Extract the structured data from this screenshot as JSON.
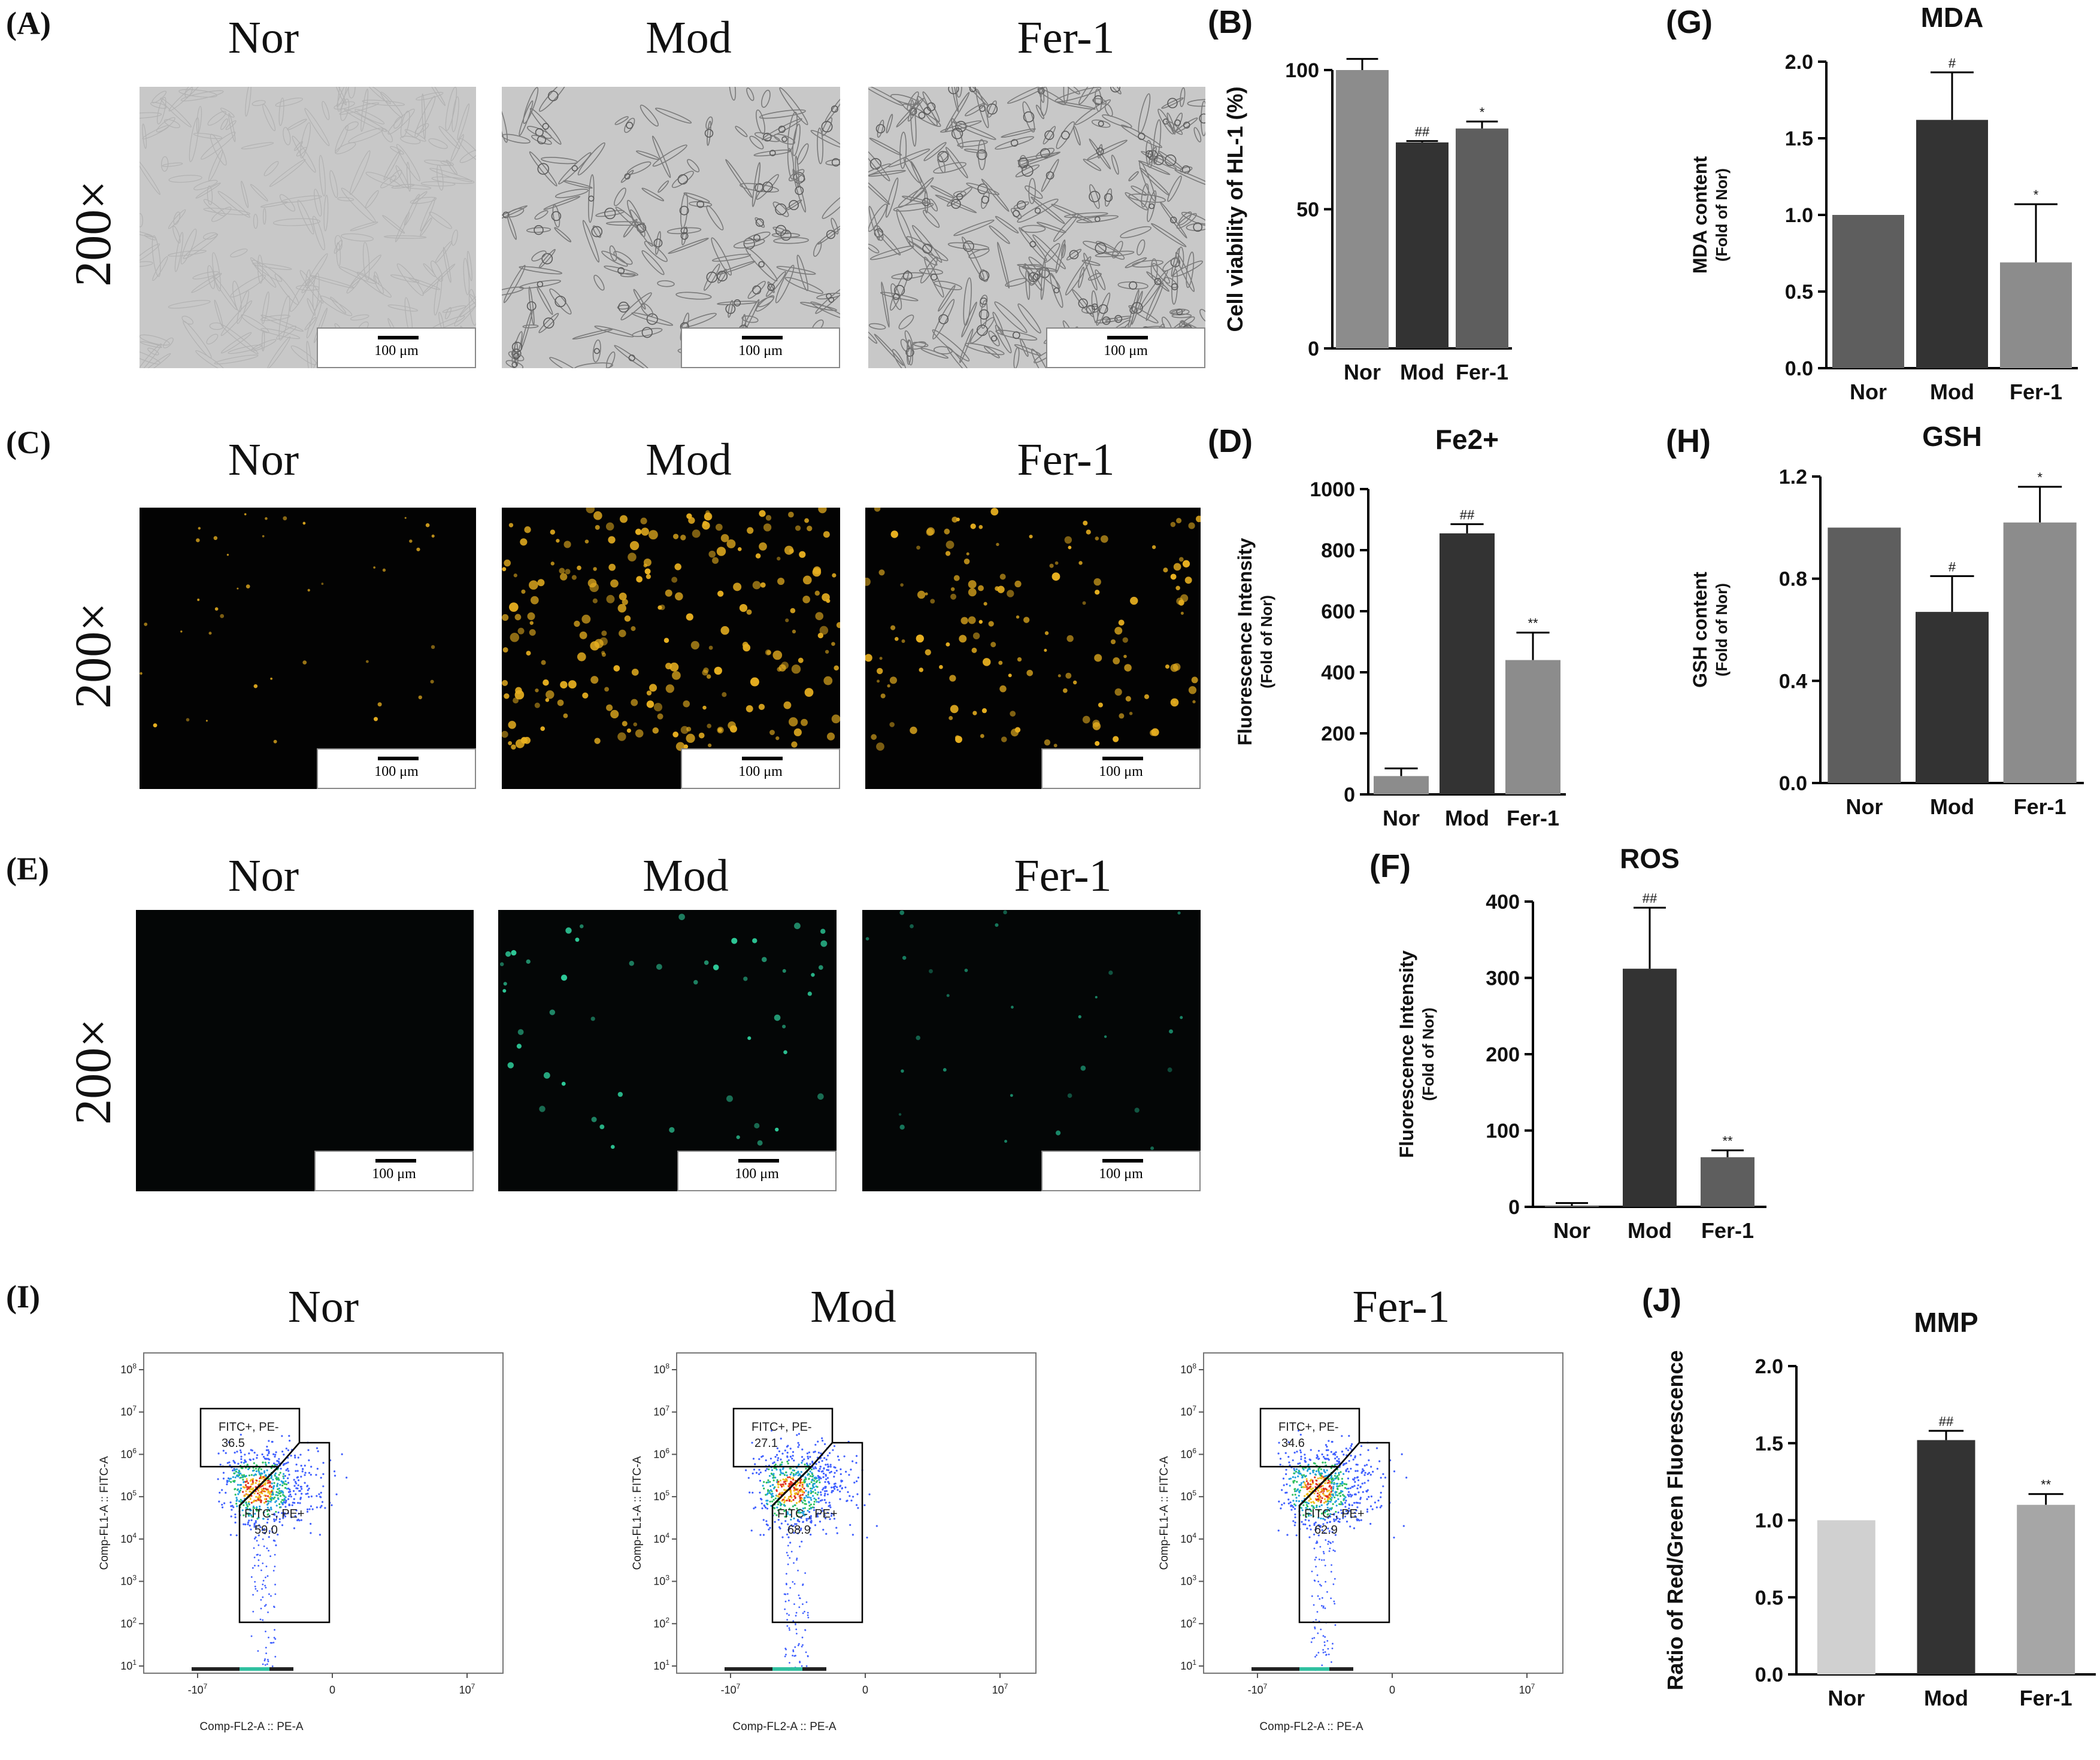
{
  "panels": {
    "A": {
      "label": "(A)",
      "groups": [
        "Nor",
        "Mod",
        "Fer-1"
      ],
      "magnification": "200×",
      "scale_text": "100 μm"
    },
    "C": {
      "label": "(C)",
      "groups": [
        "Nor",
        "Mod",
        "Fer-1"
      ],
      "magnification": "200×",
      "scale_text": "100 μm"
    },
    "E": {
      "label": "(E)",
      "groups": [
        "Nor",
        "Mod",
        "Fer-1"
      ],
      "magnification": "200×",
      "scale_text": "100 μm"
    },
    "I": {
      "label": "(I)",
      "groups": [
        "Nor",
        "Mod",
        "Fer-1"
      ],
      "xaxis_title": "Comp-FL2-A :: PE-A",
      "yaxis_title": "Comp-FL1-A :: FITC-A",
      "gate_upper": "FITC+, PE-",
      "gate_lower": "FITC-, PE+",
      "upper_values": [
        "36.5",
        "27.1",
        "34.6"
      ],
      "lower_values": [
        "59.0",
        "68.9",
        "62.9"
      ],
      "yticks": [
        "10^1",
        "10^2",
        "10^3",
        "10^4",
        "10^5",
        "10^6",
        "10^7",
        "10^8"
      ],
      "xticks": [
        "-10^7",
        "0",
        "10^7"
      ]
    }
  },
  "chart_data": [
    {
      "id": "B",
      "label": "(B)",
      "type": "bar",
      "title": "",
      "ylabel": "Cell viability of HL-1 (%)",
      "ylabel2": "",
      "categories": [
        "Nor",
        "Mod",
        "Fer-1"
      ],
      "values": [
        100,
        74,
        79
      ],
      "errors": [
        4,
        0.5,
        2.5
      ],
      "sig": [
        "",
        "##",
        "*"
      ],
      "ylim": [
        0,
        100
      ],
      "yticks": [
        0,
        50,
        100
      ],
      "yticklabels": [
        "0",
        "50",
        "100"
      ],
      "colors": [
        "#8c8c8c",
        "#333333",
        "#5e5e5e"
      ]
    },
    {
      "id": "G",
      "label": "(G)",
      "type": "bar",
      "title": "MDA",
      "ylabel": "MDA content",
      "ylabel2": "(Fold of Nor)",
      "categories": [
        "Nor",
        "Mod",
        "Fer-1"
      ],
      "values": [
        1.0,
        1.62,
        0.69
      ],
      "errors": [
        0,
        0.31,
        0.38
      ],
      "sig": [
        "",
        "#",
        "*"
      ],
      "ylim": [
        0,
        2.0
      ],
      "yticks": [
        0,
        0.5,
        1.0,
        1.5,
        2.0
      ],
      "yticklabels": [
        "0.0",
        "0.5",
        "1.0",
        "1.5",
        "2.0"
      ],
      "colors": [
        "#5e5e5e",
        "#333333",
        "#8c8c8c"
      ]
    },
    {
      "id": "D",
      "label": "(D)",
      "type": "bar",
      "title": "Fe2+",
      "ylabel": "Fluorescence Intensity",
      "ylabel2": "(Fold of Nor)",
      "categories": [
        "Nor",
        "Mod",
        "Fer-1"
      ],
      "values": [
        60,
        855,
        440
      ],
      "errors": [
        25,
        30,
        90
      ],
      "sig": [
        "",
        "##",
        "**"
      ],
      "ylim": [
        0,
        1000
      ],
      "yticks": [
        0,
        200,
        400,
        600,
        800,
        1000
      ],
      "yticklabels": [
        "0",
        "200",
        "400",
        "600",
        "800",
        "1000"
      ],
      "colors": [
        "#8c8c8c",
        "#333333",
        "#8c8c8c"
      ]
    },
    {
      "id": "H",
      "label": "(H)",
      "type": "bar",
      "title": "GSH",
      "ylabel": "GSH content",
      "ylabel2": "(Fold of Nor)",
      "categories": [
        "Nor",
        "Mod",
        "Fer-1"
      ],
      "values": [
        1.0,
        0.67,
        1.02
      ],
      "errors": [
        0,
        0.14,
        0.14
      ],
      "sig": [
        "",
        "#",
        "*"
      ],
      "ylim": [
        0,
        1.2
      ],
      "yticks": [
        0,
        0.4,
        0.8,
        1.2
      ],
      "yticklabels": [
        "0.0",
        "0.4",
        "0.8",
        "1.2"
      ],
      "colors": [
        "#5e5e5e",
        "#333333",
        "#8c8c8c"
      ]
    },
    {
      "id": "F",
      "label": "(F)",
      "type": "bar",
      "title": "ROS",
      "ylabel": "Fluorescence Intensity",
      "ylabel2": "(Fold of Nor)",
      "categories": [
        "Nor",
        "Mod",
        "Fer-1"
      ],
      "values": [
        1,
        312,
        65
      ],
      "errors": [
        4,
        80,
        9
      ],
      "sig": [
        "",
        "##",
        "**"
      ],
      "ylim": [
        0,
        400
      ],
      "yticks": [
        0,
        100,
        200,
        300,
        400
      ],
      "yticklabels": [
        "0",
        "100",
        "200",
        "300",
        "400"
      ],
      "colors": [
        "#8c8c8c",
        "#333333",
        "#5e5e5e"
      ]
    },
    {
      "id": "J",
      "label": "(J)",
      "type": "bar",
      "title": "MMP",
      "ylabel": "Ratio of Red/Green Fluorescence",
      "ylabel2": "",
      "categories": [
        "Nor",
        "Mod",
        "Fer-1"
      ],
      "values": [
        1.0,
        1.52,
        1.1
      ],
      "errors": [
        0,
        0.06,
        0.07
      ],
      "sig": [
        "",
        "##",
        "**"
      ],
      "ylim": [
        0,
        2.0
      ],
      "yticks": [
        0,
        0.5,
        1.0,
        1.5,
        2.0
      ],
      "yticklabels": [
        "0.0",
        "0.5",
        "1.0",
        "1.5",
        "2.0"
      ],
      "colors": [
        "#d0d0d0",
        "#333333",
        "#a6a6a6"
      ]
    }
  ],
  "colors": {
    "yellow_signal": "#e8b020",
    "green_signal": "#2ecc9a",
    "dark_bg": "#030303",
    "bright_bg": "#c8c8c8",
    "gate_line": "#000000"
  }
}
